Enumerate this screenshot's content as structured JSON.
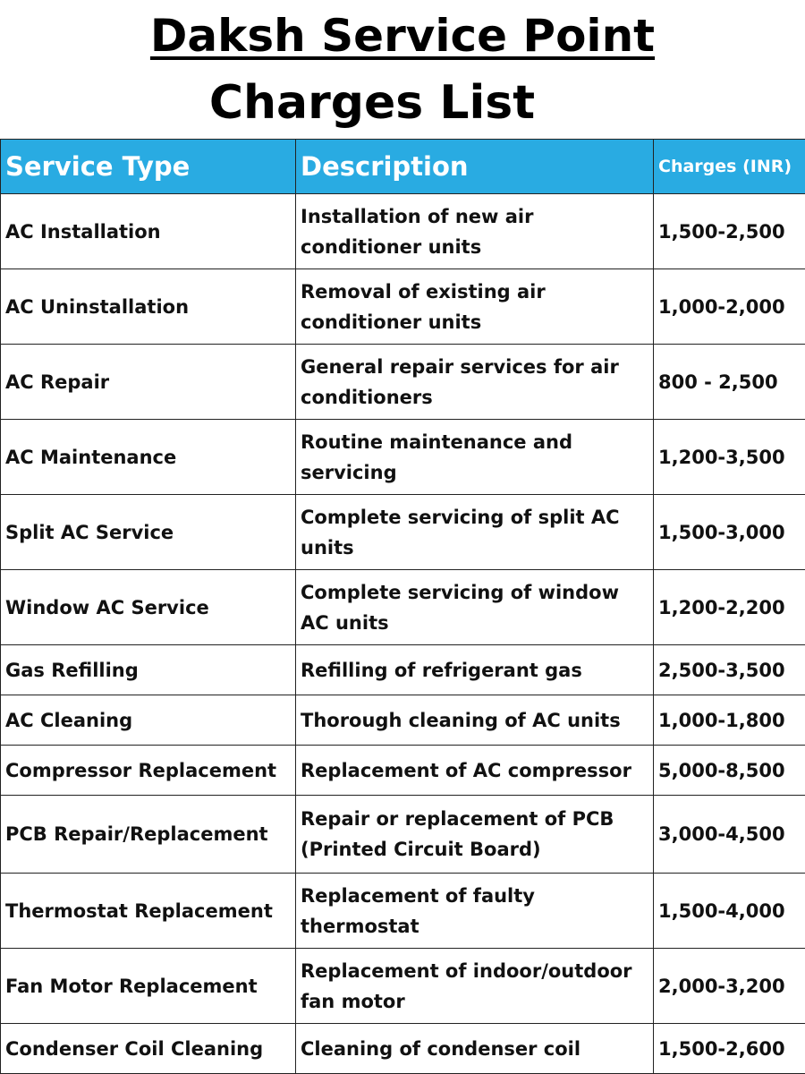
{
  "header": {
    "title": "Daksh Service Point",
    "subtitle": "Charges List"
  },
  "colors": {
    "header_bg": "#29abe2",
    "header_text": "#ffffff",
    "body_text": "#111111",
    "border": "#222222"
  },
  "table": {
    "columns": [
      "Service Type",
      "Description",
      "Charges (INR)"
    ],
    "rows": [
      {
        "service": "AC Installation",
        "description": "Installation of new air conditioner units",
        "charges": "1,500-2,500"
      },
      {
        "service": "AC Uninstallation",
        "description": "Removal of existing air conditioner units",
        "charges": "1,000-2,000"
      },
      {
        "service": "AC Repair",
        "description": "General repair services for air conditioners",
        "charges": "800 - 2,500"
      },
      {
        "service": "AC Maintenance",
        "description": "Routine maintenance and servicing",
        "charges": "1,200-3,500"
      },
      {
        "service": "Split AC Service",
        "description": "Complete servicing of split AC units",
        "charges": "1,500-3,000"
      },
      {
        "service": "Window AC Service",
        "description": "Complete servicing of window AC units",
        "charges": "1,200-2,200"
      },
      {
        "service": "Gas Refilling",
        "description": "Refilling of refrigerant gas",
        "charges": "2,500-3,500"
      },
      {
        "service": "AC Cleaning",
        "description": "Thorough cleaning of AC units",
        "charges": "1,000-1,800"
      },
      {
        "service": "Compressor Replacement",
        "description": "Replacement of AC compressor",
        "charges": "5,000-8,500"
      },
      {
        "service": "PCB Repair/Replacement",
        "description": "Repair or replacement of PCB (Printed Circuit Board)",
        "charges": "3,000-4,500"
      },
      {
        "service": "Thermostat Replacement",
        "description": "Replacement of faulty thermostat",
        "charges": "1,500-4,000"
      },
      {
        "service": "Fan Motor Replacement",
        "description": "Replacement of indoor/outdoor fan motor",
        "charges": "2,000-3,200"
      },
      {
        "service": "Condenser Coil Cleaning",
        "description": "Cleaning of condenser coil",
        "charges": "1,500-2,600"
      }
    ]
  }
}
